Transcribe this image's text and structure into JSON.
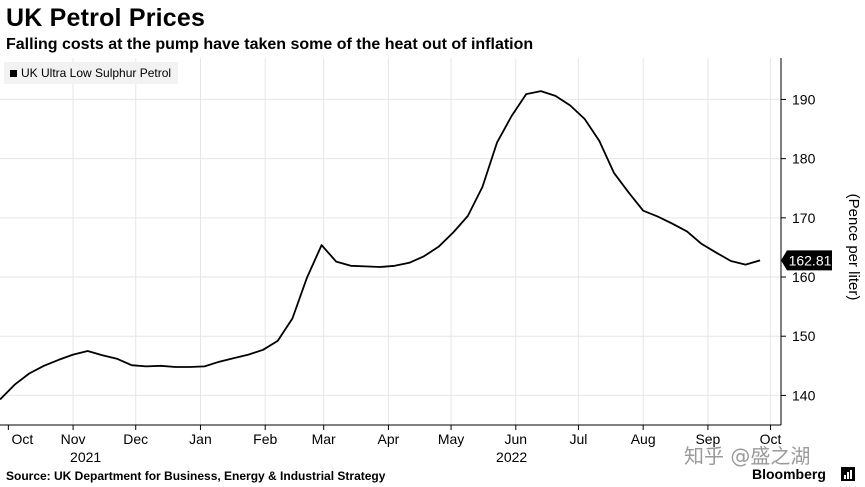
{
  "title": "UK Petrol Prices",
  "subtitle": "Falling costs at the pump have taken some of the heat out of inflation",
  "source": "Source: UK Department for Business, Energy & Industrial Strategy",
  "brand": "Bloomberg",
  "watermark": "知乎 @盛之湖",
  "chart_data": {
    "type": "line",
    "ylabel": "(Pence per liter)",
    "ylim": [
      135,
      197
    ],
    "yticks": [
      140,
      150,
      160,
      170,
      180,
      190
    ],
    "grid": true,
    "legend_placement": "top-left",
    "last_value_label": "162.81",
    "x_ticks": [
      {
        "label": "Oct",
        "date": "2021-10-01"
      },
      {
        "label": "Nov",
        "date": "2021-11-01"
      },
      {
        "label": "Dec",
        "date": "2021-12-01"
      },
      {
        "label": "Jan",
        "date": "2022-01-01"
      },
      {
        "label": "Feb",
        "date": "2022-02-01"
      },
      {
        "label": "Mar",
        "date": "2022-03-01"
      },
      {
        "label": "Apr",
        "date": "2022-04-01"
      },
      {
        "label": "May",
        "date": "2022-05-01"
      },
      {
        "label": "Jun",
        "date": "2022-06-01"
      },
      {
        "label": "Jul",
        "date": "2022-07-01"
      },
      {
        "label": "Aug",
        "date": "2022-08-01"
      },
      {
        "label": "Sep",
        "date": "2022-09-01"
      },
      {
        "label": "Oct",
        "date": "2022-10-01"
      }
    ],
    "year_labels": [
      {
        "label": "2021",
        "date": "2021-11-07"
      },
      {
        "label": "2022",
        "date": "2022-05-30"
      }
    ],
    "series": [
      {
        "name": "UK Ultra Low Sulphur Petrol",
        "color": "#000000",
        "points": [
          {
            "x": "2021-09-27",
            "y": 139.3
          },
          {
            "x": "2021-10-04",
            "y": 141.8
          },
          {
            "x": "2021-10-11",
            "y": 143.7
          },
          {
            "x": "2021-10-18",
            "y": 145.0
          },
          {
            "x": "2021-10-25",
            "y": 146.0
          },
          {
            "x": "2021-11-01",
            "y": 146.9
          },
          {
            "x": "2021-11-08",
            "y": 147.5
          },
          {
            "x": "2021-11-15",
            "y": 146.8
          },
          {
            "x": "2021-11-22",
            "y": 146.2
          },
          {
            "x": "2021-11-29",
            "y": 145.1
          },
          {
            "x": "2021-12-06",
            "y": 144.9
          },
          {
            "x": "2021-12-13",
            "y": 145.0
          },
          {
            "x": "2021-12-20",
            "y": 144.8
          },
          {
            "x": "2021-12-27",
            "y": 144.8
          },
          {
            "x": "2022-01-03",
            "y": 144.9
          },
          {
            "x": "2022-01-10",
            "y": 145.7
          },
          {
            "x": "2022-01-17",
            "y": 146.3
          },
          {
            "x": "2022-01-24",
            "y": 146.9
          },
          {
            "x": "2022-01-31",
            "y": 147.7
          },
          {
            "x": "2022-02-07",
            "y": 149.2
          },
          {
            "x": "2022-02-14",
            "y": 153.0
          },
          {
            "x": "2022-02-21",
            "y": 159.9
          },
          {
            "x": "2022-02-28",
            "y": 165.4
          },
          {
            "x": "2022-03-07",
            "y": 162.6
          },
          {
            "x": "2022-03-14",
            "y": 161.9
          },
          {
            "x": "2022-03-21",
            "y": 161.8
          },
          {
            "x": "2022-03-28",
            "y": 161.7
          },
          {
            "x": "2022-04-04",
            "y": 161.9
          },
          {
            "x": "2022-04-11",
            "y": 162.4
          },
          {
            "x": "2022-04-18",
            "y": 163.5
          },
          {
            "x": "2022-04-25",
            "y": 165.1
          },
          {
            "x": "2022-05-02",
            "y": 167.5
          },
          {
            "x": "2022-05-09",
            "y": 170.3
          },
          {
            "x": "2022-05-16",
            "y": 175.2
          },
          {
            "x": "2022-05-23",
            "y": 182.7
          },
          {
            "x": "2022-05-30",
            "y": 187.2
          },
          {
            "x": "2022-06-06",
            "y": 190.9
          },
          {
            "x": "2022-06-13",
            "y": 191.4
          },
          {
            "x": "2022-06-20",
            "y": 190.6
          },
          {
            "x": "2022-06-27",
            "y": 189.0
          },
          {
            "x": "2022-07-04",
            "y": 186.7
          },
          {
            "x": "2022-07-11",
            "y": 183.0
          },
          {
            "x": "2022-07-18",
            "y": 177.6
          },
          {
            "x": "2022-07-25",
            "y": 174.3
          },
          {
            "x": "2022-08-01",
            "y": 171.2
          },
          {
            "x": "2022-08-08",
            "y": 170.2
          },
          {
            "x": "2022-08-15",
            "y": 169.0
          },
          {
            "x": "2022-08-22",
            "y": 167.7
          },
          {
            "x": "2022-08-29",
            "y": 165.6
          },
          {
            "x": "2022-09-05",
            "y": 164.1
          },
          {
            "x": "2022-09-12",
            "y": 162.7
          },
          {
            "x": "2022-09-19",
            "y": 162.1
          },
          {
            "x": "2022-09-26",
            "y": 162.81
          }
        ]
      }
    ]
  }
}
